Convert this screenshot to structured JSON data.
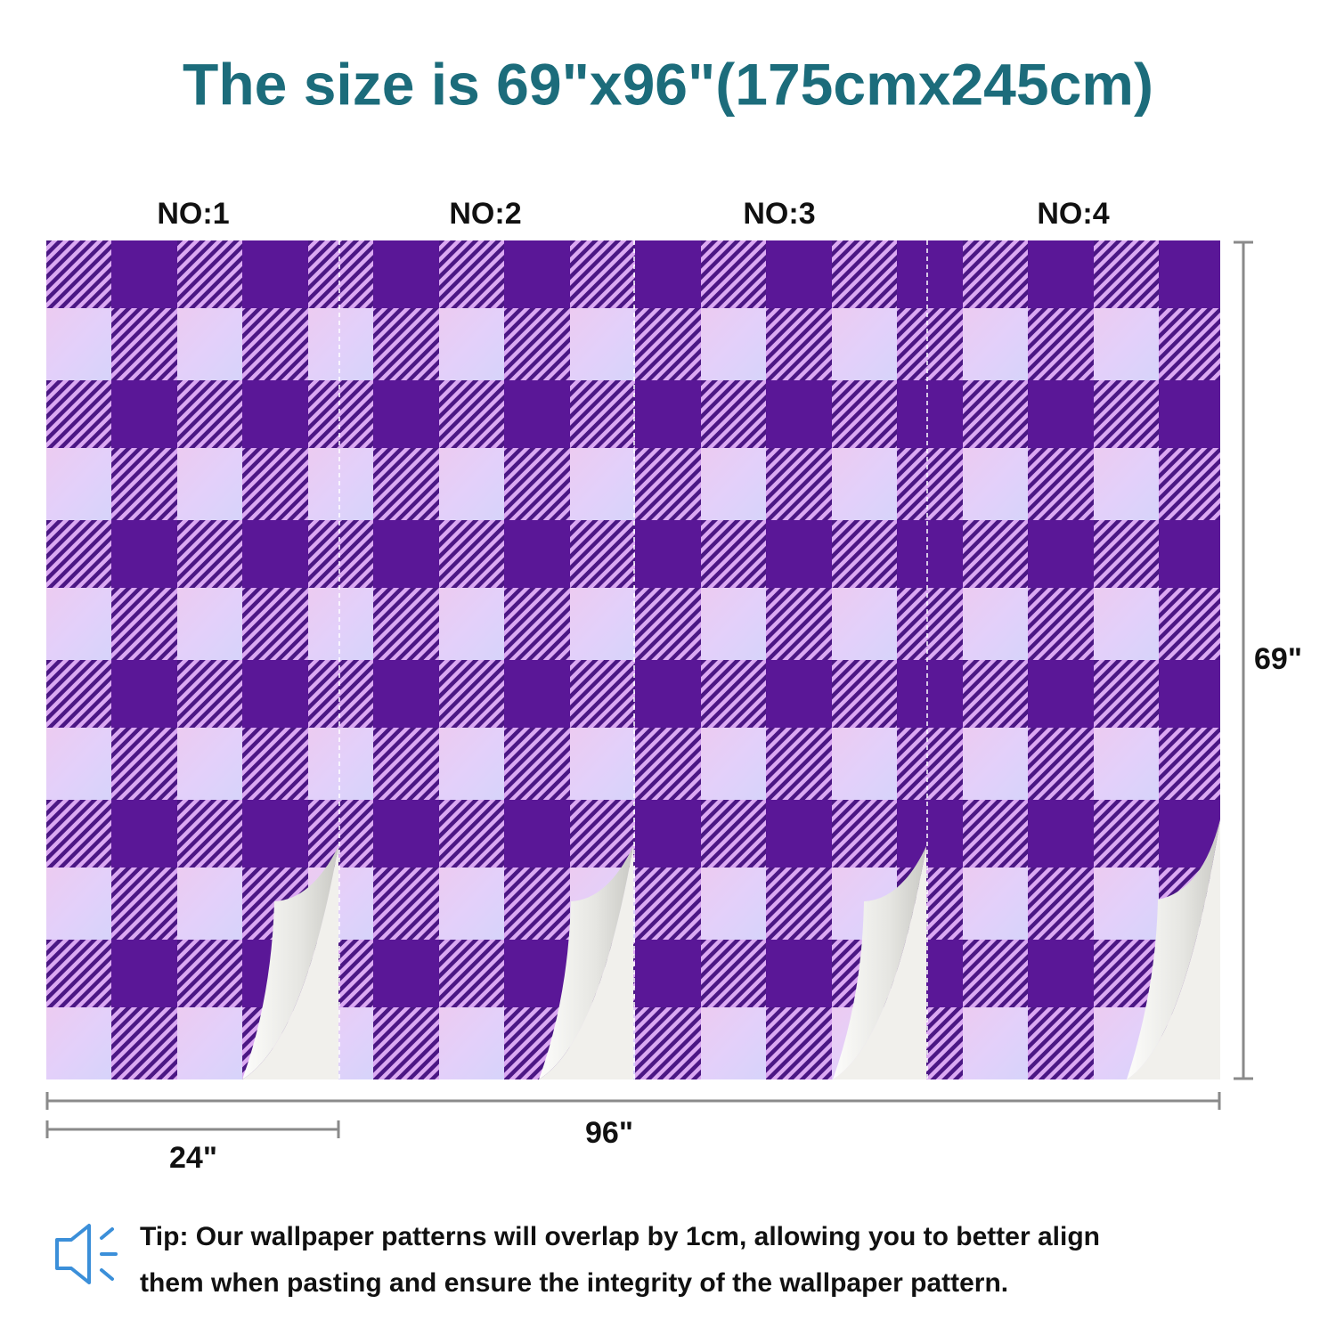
{
  "title": "The size is 69\"x96\"(175cmx245cm)",
  "panels": [
    {
      "label": "NO:1"
    },
    {
      "label": "NO:2"
    },
    {
      "label": "NO:3"
    },
    {
      "label": "NO:4"
    }
  ],
  "dimensions": {
    "height": "69\"",
    "width": "96\"",
    "panel_width": "24\""
  },
  "tip": {
    "lines": [
      "Tip: Our wallpaper patterns will overlap by 1cm, allowing you to better align",
      "them when pasting and ensure the integrity of the wallpaper pattern."
    ]
  }
}
